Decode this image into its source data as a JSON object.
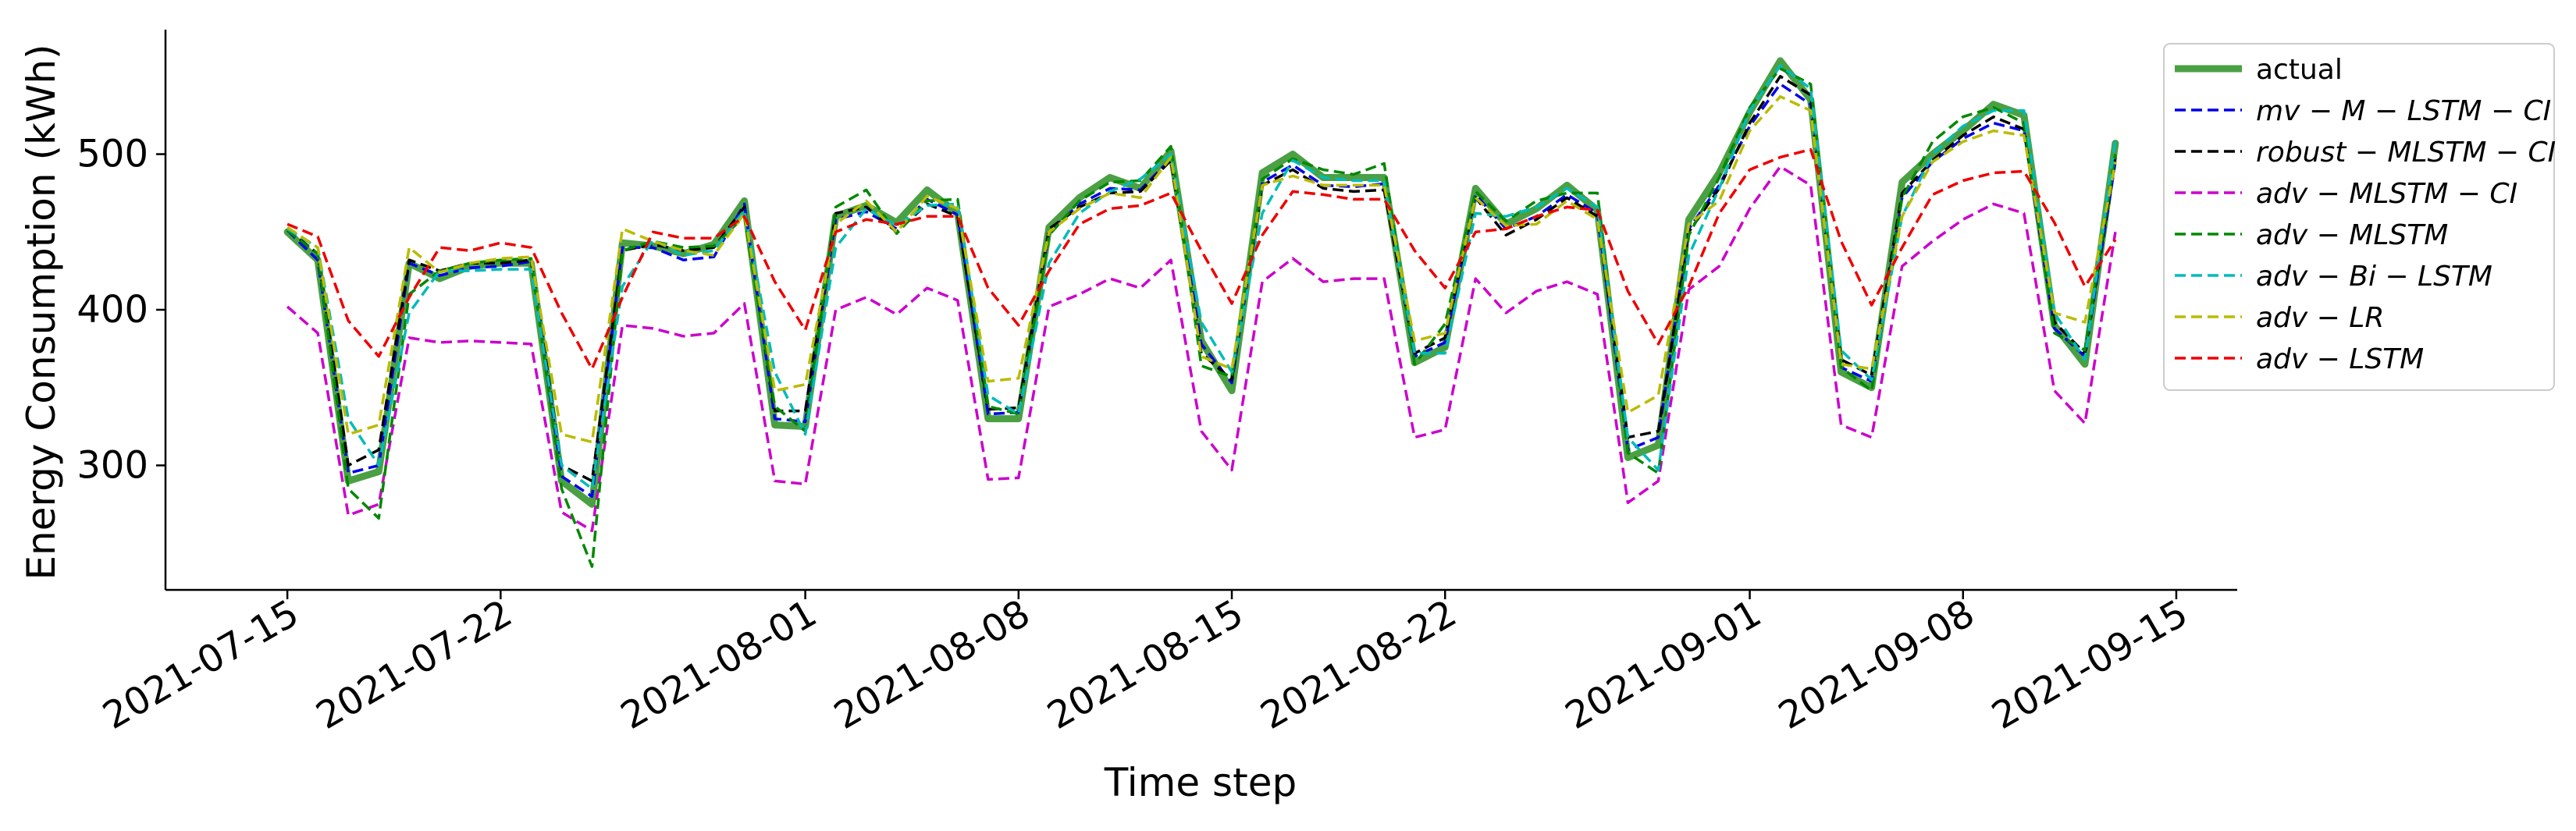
{
  "chart_data": {
    "type": "line",
    "title": "",
    "xlabel": "Time step",
    "ylabel": "Energy Consumption (kWh)",
    "x_type": "date",
    "xlim": [
      "2021-07-11",
      "2021-09-17"
    ],
    "ylim": [
      220,
      580
    ],
    "x_ticks": [
      "2021-07-15",
      "2021-07-22",
      "2021-08-01",
      "2021-08-08",
      "2021-08-15",
      "2021-08-22",
      "2021-09-01",
      "2021-09-08",
      "2021-09-15"
    ],
    "y_ticks": [
      300,
      400,
      500
    ],
    "grid": false,
    "legend_position": "top-right",
    "x": [
      "2021-07-15",
      "2021-07-16",
      "2021-07-17",
      "2021-07-18",
      "2021-07-19",
      "2021-07-20",
      "2021-07-21",
      "2021-07-22",
      "2021-07-23",
      "2021-07-24",
      "2021-07-25",
      "2021-07-26",
      "2021-07-27",
      "2021-07-28",
      "2021-07-29",
      "2021-07-30",
      "2021-07-31",
      "2021-08-01",
      "2021-08-02",
      "2021-08-03",
      "2021-08-04",
      "2021-08-05",
      "2021-08-06",
      "2021-08-07",
      "2021-08-08",
      "2021-08-09",
      "2021-08-10",
      "2021-08-11",
      "2021-08-12",
      "2021-08-13",
      "2021-08-14",
      "2021-08-15",
      "2021-08-16",
      "2021-08-17",
      "2021-08-18",
      "2021-08-19",
      "2021-08-20",
      "2021-08-21",
      "2021-08-22",
      "2021-08-23",
      "2021-08-24",
      "2021-08-25",
      "2021-08-26",
      "2021-08-27",
      "2021-08-28",
      "2021-08-29",
      "2021-08-30",
      "2021-08-31",
      "2021-09-01",
      "2021-09-02",
      "2021-09-03",
      "2021-09-04",
      "2021-09-05",
      "2021-09-06",
      "2021-09-07",
      "2021-09-08",
      "2021-09-09",
      "2021-09-10",
      "2021-09-11",
      "2021-09-12",
      "2021-09-13"
    ],
    "series": [
      {
        "name": "actual",
        "color": "#4aa043",
        "style": "solid",
        "width": 9,
        "values": [
          450,
          432,
          290,
          296,
          430,
          420,
          428,
          430,
          430,
          290,
          275,
          443,
          441,
          436,
          442,
          470,
          326,
          325,
          460,
          467,
          456,
          477,
          462,
          330,
          330,
          453,
          472,
          485,
          478,
          502,
          380,
          348,
          488,
          500,
          485,
          485,
          485,
          366,
          376,
          478,
          455,
          465,
          480,
          464,
          305,
          313,
          458,
          488,
          527,
          560,
          535,
          360,
          350,
          482,
          500,
          515,
          532,
          525,
          390,
          365,
          507
        ]
      },
      {
        "name": "mv − M − LSTM − CI",
        "label_main": "mv",
        "label_rest": " − M − LSTM − CI",
        "color": "#0000ee",
        "style": "dashed",
        "width": 3.5,
        "values": [
          451,
          432,
          295,
          300,
          430,
          422,
          427,
          428,
          431,
          293,
          280,
          440,
          440,
          432,
          434,
          468,
          330,
          328,
          458,
          463,
          452,
          471,
          461,
          333,
          334,
          450,
          468,
          478,
          477,
          497,
          378,
          353,
          482,
          493,
          480,
          479,
          481,
          370,
          379,
          474,
          452,
          460,
          474,
          462,
          310,
          318,
          452,
          480,
          518,
          545,
          532,
          363,
          354,
          472,
          495,
          510,
          520,
          515,
          388,
          370,
          495
        ]
      },
      {
        "name": "robust − MLSTM − CI",
        "label_main": "robust",
        "label_rest": " − MLSTM − CI",
        "color": "#000000",
        "style": "dashed",
        "width": 3.5,
        "values": [
          452,
          436,
          300,
          310,
          432,
          425,
          430,
          430,
          432,
          300,
          290,
          438,
          442,
          438,
          440,
          466,
          335,
          335,
          462,
          466,
          450,
          468,
          460,
          336,
          337,
          452,
          466,
          475,
          476,
          496,
          372,
          355,
          480,
          490,
          478,
          476,
          477,
          372,
          382,
          472,
          448,
          458,
          472,
          460,
          318,
          322,
          450,
          478,
          520,
          550,
          538,
          368,
          358,
          475,
          496,
          512,
          524,
          516,
          392,
          372,
          498
        ]
      },
      {
        "name": "adv − MLSTM − CI",
        "label_main": "adv",
        "label_rest": " − MLSTM − CI",
        "color": "#cc00cc",
        "style": "dashed",
        "width": 3.5,
        "values": [
          402,
          385,
          268,
          275,
          382,
          379,
          380,
          379,
          378,
          270,
          258,
          390,
          388,
          383,
          385,
          404,
          290,
          288,
          400,
          408,
          397,
          414,
          406,
          291,
          292,
          402,
          410,
          420,
          414,
          432,
          322,
          297,
          418,
          433,
          418,
          420,
          420,
          318,
          323,
          420,
          398,
          412,
          418,
          410,
          276,
          290,
          413,
          428,
          465,
          492,
          480,
          326,
          318,
          428,
          444,
          458,
          468,
          462,
          348,
          327,
          450
        ]
      },
      {
        "name": "adv − MLSTM",
        "label_main": "adv",
        "label_rest": " − MLSTM",
        "color": "#008800",
        "style": "dashed",
        "width": 3.5,
        "values": [
          451,
          436,
          285,
          266,
          410,
          425,
          430,
          432,
          433,
          285,
          235,
          438,
          444,
          440,
          441,
          460,
          338,
          322,
          466,
          477,
          449,
          470,
          471,
          338,
          333,
          448,
          470,
          482,
          483,
          505,
          364,
          357,
          484,
          497,
          490,
          487,
          494,
          365,
          391,
          476,
          457,
          470,
          475,
          475,
          308,
          295,
          448,
          485,
          530,
          555,
          545,
          363,
          348,
          472,
          508,
          524,
          530,
          520,
          385,
          374,
          500
        ]
      },
      {
        "name": "adv − Bi − LSTM",
        "label_main": "adv",
        "label_rest": " − Bi − LSTM",
        "color": "#00bbbb",
        "style": "dashed",
        "width": 3.5,
        "values": [
          452,
          440,
          330,
          300,
          398,
          425,
          425,
          426,
          426,
          300,
          285,
          415,
          445,
          435,
          438,
          464,
          360,
          320,
          440,
          465,
          454,
          467,
          468,
          345,
          333,
          430,
          462,
          476,
          484,
          500,
          392,
          360,
          462,
          496,
          485,
          483,
          483,
          372,
          372,
          462,
          460,
          466,
          478,
          466,
          318,
          297,
          435,
          478,
          528,
          557,
          542,
          374,
          355,
          460,
          500,
          518,
          528,
          528,
          398,
          368,
          510
        ]
      },
      {
        "name": "adv − LR",
        "label_main": "adv",
        "label_rest": " − LR",
        "color": "#bbbb00",
        "style": "dashed",
        "width": 3.5,
        "values": [
          453,
          440,
          320,
          326,
          440,
          424,
          430,
          433,
          434,
          320,
          315,
          452,
          444,
          438,
          435,
          462,
          348,
          352,
          455,
          470,
          450,
          473,
          465,
          354,
          356,
          450,
          465,
          475,
          472,
          498,
          370,
          362,
          480,
          486,
          480,
          480,
          480,
          380,
          385,
          472,
          454,
          455,
          470,
          458,
          334,
          345,
          455,
          470,
          515,
          537,
          528,
          365,
          362,
          460,
          495,
          508,
          515,
          512,
          398,
          392,
          495
        ]
      },
      {
        "name": "adv − LSTM",
        "label_main": "adv",
        "label_rest": " − LSTM",
        "color": "#ee0000",
        "style": "dashed",
        "width": 3.5,
        "values": [
          455,
          447,
          393,
          370,
          408,
          440,
          438,
          443,
          440,
          398,
          362,
          408,
          450,
          446,
          446,
          460,
          418,
          387,
          450,
          458,
          455,
          460,
          460,
          414,
          390,
          425,
          455,
          465,
          467,
          475,
          438,
          404,
          448,
          476,
          474,
          471,
          471,
          438,
          414,
          450,
          452,
          460,
          466,
          464,
          412,
          378,
          415,
          462,
          490,
          498,
          503,
          444,
          403,
          440,
          474,
          483,
          488,
          489,
          456,
          415,
          445
        ]
      }
    ]
  }
}
